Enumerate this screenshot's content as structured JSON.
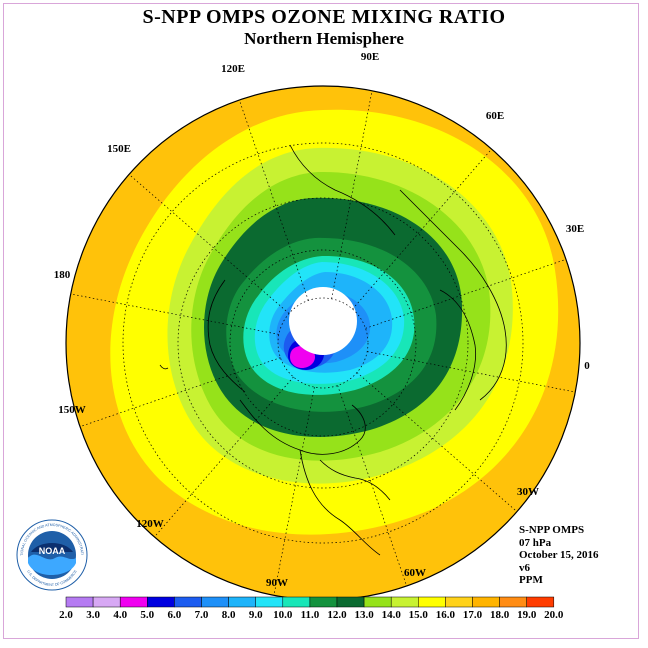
{
  "header": {
    "title": "S-NPP OMPS OZONE MIXING RATIO",
    "subtitle": "Northern Hemisphere"
  },
  "map": {
    "longitude_labels": [
      "90E",
      "60E",
      "30E",
      "0",
      "30W",
      "60W",
      "90W",
      "120W",
      "150W",
      "180",
      "150E",
      "120E"
    ],
    "contour_levels": [
      {
        "value": 2.0,
        "color": "#b57bf2"
      },
      {
        "value": 3.0,
        "color": "#d7a8f4"
      },
      {
        "value": 4.0,
        "color": "#f000f0"
      },
      {
        "value": 5.0,
        "color": "#0000e0"
      },
      {
        "value": 6.0,
        "color": "#1c5cf0"
      },
      {
        "value": 7.0,
        "color": "#1e90f8"
      },
      {
        "value": 8.0,
        "color": "#1eb4fa"
      },
      {
        "value": 9.0,
        "color": "#22e4f8"
      },
      {
        "value": 10.0,
        "color": "#18e6b8"
      },
      {
        "value": 11.0,
        "color": "#14923e"
      },
      {
        "value": 12.0,
        "color": "#0b6a30"
      },
      {
        "value": 13.0,
        "color": "#96e21a"
      },
      {
        "value": 14.0,
        "color": "#c8f232"
      },
      {
        "value": 15.0,
        "color": "#ffff00"
      },
      {
        "value": 16.0,
        "color": "#ffd21a"
      },
      {
        "value": 17.0,
        "color": "#ffb400"
      },
      {
        "value": 18.0,
        "color": "#ff8c14"
      },
      {
        "value": 19.0,
        "color": "#ff3c00"
      },
      {
        "value": 20.0,
        "color": "#e00000"
      }
    ],
    "top_bin_color": "#8c4a28"
  },
  "info": {
    "instrument": "S-NPP OMPS",
    "level": "07 hPa",
    "date": "October 15, 2016",
    "version": "v6",
    "units": "PPM"
  },
  "colorbar": {
    "labels": [
      "2.0",
      "3.0",
      "4.0",
      "5.0",
      "6.0",
      "7.0",
      "8.0",
      "9.0",
      "10.0",
      "11.0",
      "12.0",
      "13.0",
      "14.0",
      "15.0",
      "16.0",
      "17.0",
      "18.0",
      "19.0",
      "20.0"
    ]
  },
  "logo": {
    "text": "NOAA",
    "ring_text": "NATIONAL OCEANIC AND ATMOSPHERIC ADMINISTRATION",
    "ring_text_bottom": "U.S. DEPARTMENT OF COMMERCE",
    "colors": {
      "ring": "#1f5fa8",
      "center": "#0b2f6e",
      "wave": "#3da8ff"
    }
  }
}
